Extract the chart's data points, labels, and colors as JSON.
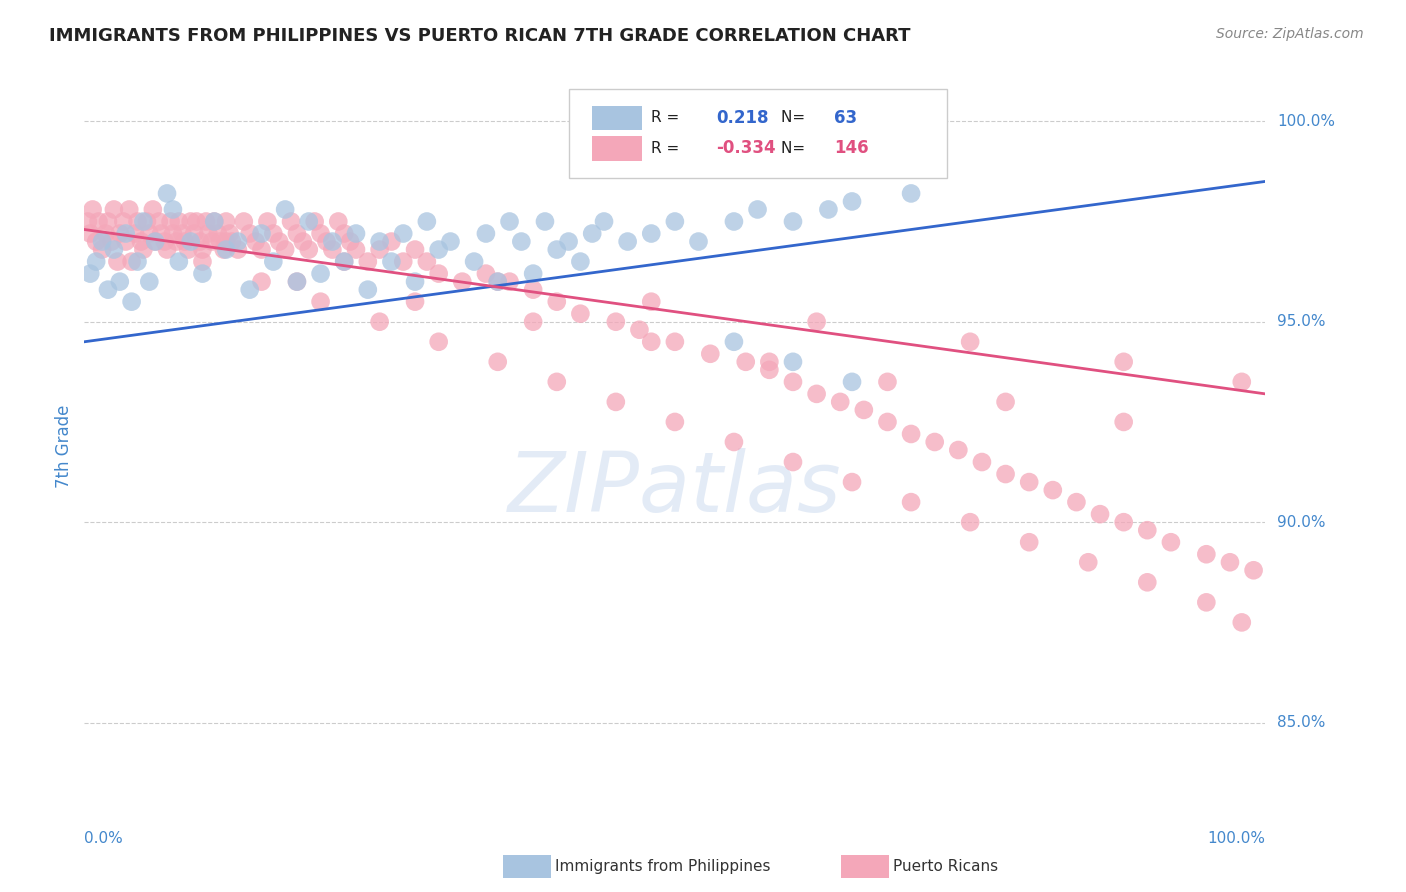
{
  "title": "IMMIGRANTS FROM PHILIPPINES VS PUERTO RICAN 7TH GRADE CORRELATION CHART",
  "source_text": "Source: ZipAtlas.com",
  "ylabel": "7th Grade",
  "watermark": "ZIPatlas",
  "legend_blue_label": "Immigrants from Philippines",
  "legend_pink_label": "Puerto Ricans",
  "blue_R": 0.218,
  "blue_N": 63,
  "pink_R": -0.334,
  "pink_N": 146,
  "blue_color": "#a8c4e0",
  "blue_line_color": "#3366cc",
  "pink_color": "#f4a7b9",
  "pink_line_color": "#e05080",
  "axis_label_color": "#4488cc",
  "blue_scatter_x": [
    0.5,
    1.0,
    1.5,
    2.0,
    2.5,
    3.0,
    3.5,
    4.0,
    4.5,
    5.0,
    5.5,
    6.0,
    7.0,
    7.5,
    8.0,
    9.0,
    10.0,
    11.0,
    12.0,
    13.0,
    14.0,
    15.0,
    16.0,
    17.0,
    18.0,
    19.0,
    20.0,
    21.0,
    22.0,
    23.0,
    24.0,
    25.0,
    26.0,
    27.0,
    28.0,
    29.0,
    30.0,
    31.0,
    33.0,
    34.0,
    35.0,
    36.0,
    37.0,
    38.0,
    39.0,
    40.0,
    41.0,
    42.0,
    43.0,
    44.0,
    46.0,
    48.0,
    50.0,
    52.0,
    55.0,
    57.0,
    60.0,
    63.0,
    65.0,
    70.0,
    55.0,
    60.0,
    65.0
  ],
  "blue_scatter_y": [
    96.2,
    96.5,
    97.0,
    95.8,
    96.8,
    96.0,
    97.2,
    95.5,
    96.5,
    97.5,
    96.0,
    97.0,
    98.2,
    97.8,
    96.5,
    97.0,
    96.2,
    97.5,
    96.8,
    97.0,
    95.8,
    97.2,
    96.5,
    97.8,
    96.0,
    97.5,
    96.2,
    97.0,
    96.5,
    97.2,
    95.8,
    97.0,
    96.5,
    97.2,
    96.0,
    97.5,
    96.8,
    97.0,
    96.5,
    97.2,
    96.0,
    97.5,
    97.0,
    96.2,
    97.5,
    96.8,
    97.0,
    96.5,
    97.2,
    97.5,
    97.0,
    97.2,
    97.5,
    97.0,
    97.5,
    97.8,
    97.5,
    97.8,
    98.0,
    98.2,
    94.5,
    94.0,
    93.5
  ],
  "pink_scatter_x": [
    0.3,
    0.5,
    0.7,
    1.0,
    1.2,
    1.5,
    1.8,
    2.0,
    2.3,
    2.5,
    2.8,
    3.0,
    3.3,
    3.5,
    3.8,
    4.0,
    4.3,
    4.5,
    4.8,
    5.0,
    5.3,
    5.5,
    5.8,
    6.0,
    6.3,
    6.5,
    6.8,
    7.0,
    7.3,
    7.5,
    7.8,
    8.0,
    8.3,
    8.5,
    8.8,
    9.0,
    9.3,
    9.5,
    9.8,
    10.0,
    10.3,
    10.5,
    10.8,
    11.0,
    11.3,
    11.5,
    11.8,
    12.0,
    12.3,
    12.5,
    13.0,
    13.5,
    14.0,
    14.5,
    15.0,
    15.5,
    16.0,
    16.5,
    17.0,
    17.5,
    18.0,
    18.5,
    19.0,
    19.5,
    20.0,
    20.5,
    21.0,
    21.5,
    22.0,
    22.5,
    23.0,
    24.0,
    25.0,
    26.0,
    27.0,
    28.0,
    29.0,
    30.0,
    32.0,
    34.0,
    36.0,
    38.0,
    40.0,
    42.0,
    45.0,
    47.0,
    50.0,
    53.0,
    56.0,
    58.0,
    60.0,
    62.0,
    64.0,
    66.0,
    68.0,
    70.0,
    72.0,
    74.0,
    76.0,
    78.0,
    80.0,
    82.0,
    84.0,
    86.0,
    88.0,
    90.0,
    92.0,
    95.0,
    97.0,
    99.0,
    15.0,
    20.0,
    25.0,
    30.0,
    35.0,
    40.0,
    45.0,
    50.0,
    55.0,
    60.0,
    65.0,
    70.0,
    75.0,
    80.0,
    85.0,
    90.0,
    95.0,
    98.0,
    10.0,
    18.0,
    28.0,
    38.0,
    48.0,
    58.0,
    68.0,
    78.0,
    88.0,
    12.0,
    22.0,
    35.0,
    48.0,
    62.0,
    75.0,
    88.0,
    98.0
  ],
  "pink_scatter_y": [
    97.5,
    97.2,
    97.8,
    97.0,
    97.5,
    96.8,
    97.2,
    97.5,
    97.0,
    97.8,
    96.5,
    97.2,
    97.5,
    97.0,
    97.8,
    96.5,
    97.2,
    97.5,
    97.0,
    96.8,
    97.5,
    97.2,
    97.8,
    97.0,
    97.5,
    97.2,
    97.0,
    96.8,
    97.5,
    97.2,
    97.0,
    97.5,
    97.2,
    97.0,
    96.8,
    97.5,
    97.2,
    97.5,
    97.0,
    96.8,
    97.5,
    97.2,
    97.0,
    97.5,
    97.2,
    97.0,
    96.8,
    97.5,
    97.2,
    97.0,
    96.8,
    97.5,
    97.2,
    97.0,
    96.8,
    97.5,
    97.2,
    97.0,
    96.8,
    97.5,
    97.2,
    97.0,
    96.8,
    97.5,
    97.2,
    97.0,
    96.8,
    97.5,
    97.2,
    97.0,
    96.8,
    96.5,
    96.8,
    97.0,
    96.5,
    96.8,
    96.5,
    96.2,
    96.0,
    96.2,
    96.0,
    95.8,
    95.5,
    95.2,
    95.0,
    94.8,
    94.5,
    94.2,
    94.0,
    93.8,
    93.5,
    93.2,
    93.0,
    92.8,
    92.5,
    92.2,
    92.0,
    91.8,
    91.5,
    91.2,
    91.0,
    90.8,
    90.5,
    90.2,
    90.0,
    89.8,
    89.5,
    89.2,
    89.0,
    88.8,
    96.0,
    95.5,
    95.0,
    94.5,
    94.0,
    93.5,
    93.0,
    92.5,
    92.0,
    91.5,
    91.0,
    90.5,
    90.0,
    89.5,
    89.0,
    88.5,
    88.0,
    87.5,
    96.5,
    96.0,
    95.5,
    95.0,
    94.5,
    94.0,
    93.5,
    93.0,
    92.5,
    97.0,
    96.5,
    96.0,
    95.5,
    95.0,
    94.5,
    94.0,
    93.5
  ],
  "xmin": 0.0,
  "xmax": 100.0,
  "ymin": 83.0,
  "ymax": 100.8,
  "blue_trend_x": [
    0.0,
    100.0
  ],
  "blue_trend_y": [
    94.5,
    98.5
  ],
  "pink_trend_x": [
    0.0,
    100.0
  ],
  "pink_trend_y": [
    97.3,
    93.2
  ],
  "grid_yticks": [
    85.0,
    90.0,
    95.0,
    100.0
  ],
  "grid_ytick_labels": [
    "85.0%",
    "90.0%",
    "95.0%",
    "100.0%"
  ],
  "grid_color": "#cccccc",
  "background_color": "#ffffff"
}
